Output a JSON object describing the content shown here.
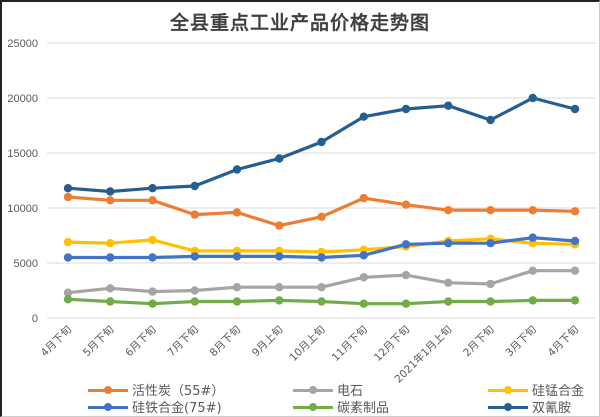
{
  "chart_data": {
    "type": "line",
    "title": "全县重点工业产品价格走势图",
    "xlabel": "",
    "ylabel": "",
    "ylim": [
      0,
      25000
    ],
    "yticks": [
      "0",
      "5000",
      "10000",
      "15000",
      "20000",
      "25000"
    ],
    "grid": true,
    "legend_position": "bottom",
    "categories": [
      "4月下旬",
      "5月下旬",
      "6月下旬",
      "7月下旬",
      "8月下旬",
      "9月上旬",
      "10月上旬",
      "11月下旬",
      "12月下旬",
      "2021年1月上旬",
      "2月下旬",
      "3月下旬",
      "4月下旬"
    ],
    "series": [
      {
        "name": "活性炭（55#）",
        "color": "#ED7D31",
        "values": [
          11000,
          10700,
          10700,
          9400,
          9600,
          8400,
          9200,
          10900,
          10300,
          9800,
          9800,
          9800,
          9700
        ]
      },
      {
        "name": "电石",
        "color": "#A5A5A5",
        "values": [
          2300,
          2700,
          2400,
          2500,
          2800,
          2800,
          2800,
          3700,
          3900,
          3200,
          3100,
          4300,
          4300
        ]
      },
      {
        "name": "硅锰合金",
        "color": "#FFC000",
        "values": [
          6900,
          6800,
          7100,
          6100,
          6100,
          6100,
          6000,
          6200,
          6500,
          7000,
          7200,
          6800,
          6700
        ]
      },
      {
        "name": "硅铁合金(75#)",
        "color": "#4472C4",
        "values": [
          5500,
          5500,
          5500,
          5600,
          5600,
          5600,
          5500,
          5700,
          6700,
          6800,
          6800,
          7300,
          7000
        ]
      },
      {
        "name": "碳素制品",
        "color": "#70AD47",
        "values": [
          1700,
          1500,
          1300,
          1500,
          1500,
          1600,
          1500,
          1300,
          1300,
          1500,
          1500,
          1600,
          1600
        ]
      },
      {
        "name": "双氰胺",
        "color": "#255E91",
        "values": [
          11800,
          11500,
          11800,
          12000,
          13500,
          14500,
          16000,
          18300,
          19000,
          19300,
          18000,
          20000,
          19000
        ]
      }
    ]
  }
}
